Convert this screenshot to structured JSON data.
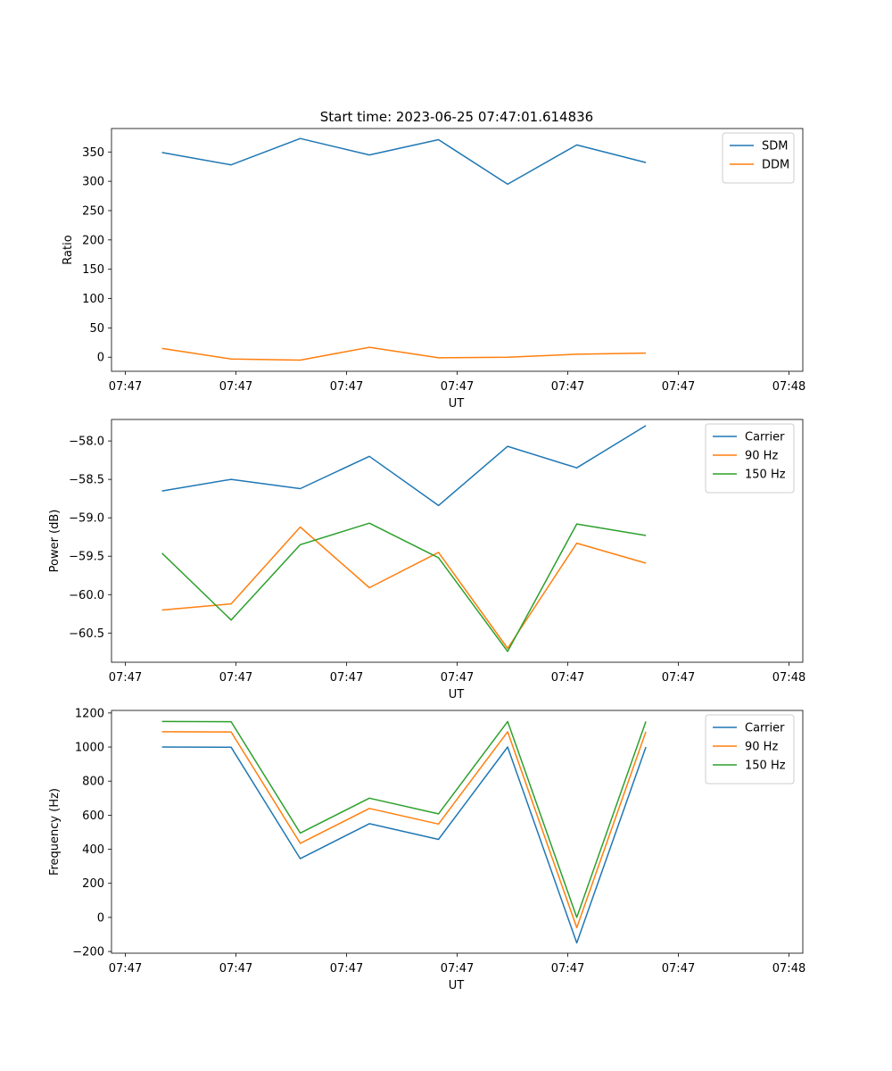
{
  "title": "Start time: 2023-06-25 07:47:01.614836",
  "colors": {
    "blue": "#1f77b4",
    "orange": "#ff7f0e",
    "green": "#2ca02c",
    "axes": "#000000",
    "legend_border": "#cccccc"
  },
  "chart_data": [
    {
      "type": "line",
      "xlabel": "UT",
      "ylabel": "Ratio",
      "xlim": [
        0,
        10
      ],
      "x_tick_labels": [
        "07:47",
        "07:47",
        "07:47",
        "07:47",
        "07:47",
        "07:47",
        "07:48"
      ],
      "ylim": [
        -24,
        390
      ],
      "y_ticks": [
        0,
        50,
        100,
        150,
        200,
        250,
        300,
        350
      ],
      "grid": false,
      "legend": "upper right",
      "x": [
        0.73,
        1.73,
        2.73,
        3.73,
        4.73,
        5.73,
        6.73,
        7.73
      ],
      "series": [
        {
          "name": "SDM",
          "color": "#1f77b4",
          "values": [
            349,
            328,
            373,
            345,
            371,
            295,
            362,
            332
          ]
        },
        {
          "name": "DDM",
          "color": "#ff7f0e",
          "values": [
            15,
            -3,
            -5,
            17,
            -1,
            0,
            5,
            7
          ]
        }
      ]
    },
    {
      "type": "line",
      "xlabel": "UT",
      "ylabel": "Power (dB)",
      "xlim": [
        0,
        10
      ],
      "x_tick_labels": [
        "07:47",
        "07:47",
        "07:47",
        "07:47",
        "07:47",
        "07:47",
        "07:48"
      ],
      "ylim": [
        -60.88,
        -57.72
      ],
      "y_ticks": [
        -60.5,
        -60.0,
        -59.5,
        -59.0,
        -58.5,
        -58.0
      ],
      "y_tick_labels": [
        "−60.5",
        "−60.0",
        "−59.5",
        "−59.0",
        "−58.5",
        "−58.0"
      ],
      "grid": false,
      "legend": "upper right",
      "x": [
        0.73,
        1.73,
        2.73,
        3.73,
        4.73,
        5.73,
        6.73,
        7.73
      ],
      "series": [
        {
          "name": "Carrier",
          "color": "#1f77b4",
          "values": [
            -58.65,
            -58.5,
            -58.62,
            -58.2,
            -58.84,
            -58.07,
            -58.35,
            -57.8
          ]
        },
        {
          "name": "90 Hz",
          "color": "#ff7f0e",
          "values": [
            -60.2,
            -60.12,
            -59.12,
            -59.91,
            -59.45,
            -60.7,
            -59.33,
            -59.59
          ]
        },
        {
          "name": "150 Hz",
          "color": "#2ca02c",
          "values": [
            -59.46,
            -60.33,
            -59.35,
            -59.07,
            -59.52,
            -60.74,
            -59.08,
            -59.23
          ]
        }
      ]
    },
    {
      "type": "line",
      "xlabel": "UT",
      "ylabel": "Frequency (Hz)",
      "xlim": [
        0,
        10
      ],
      "x_tick_labels": [
        "07:47",
        "07:47",
        "07:47",
        "07:47",
        "07:47",
        "07:47",
        "07:48"
      ],
      "ylim": [
        -210,
        1215
      ],
      "y_ticks": [
        -200,
        0,
        200,
        400,
        600,
        800,
        1000,
        1200
      ],
      "y_tick_labels": [
        "−200",
        "0",
        "200",
        "400",
        "600",
        "800",
        "1000",
        "1200"
      ],
      "grid": false,
      "legend": "upper right",
      "x": [
        0.73,
        1.73,
        2.73,
        3.73,
        4.73,
        5.73,
        6.73,
        7.73
      ],
      "series": [
        {
          "name": "Carrier",
          "color": "#1f77b4",
          "values": [
            1000,
            999,
            345,
            550,
            458,
            1000,
            -150,
            1000
          ]
        },
        {
          "name": "90 Hz",
          "color": "#ff7f0e",
          "values": [
            1090,
            1089,
            435,
            640,
            548,
            1090,
            -60,
            1090
          ]
        },
        {
          "name": "150 Hz",
          "color": "#2ca02c",
          "values": [
            1150,
            1149,
            495,
            700,
            608,
            1150,
            0,
            1150
          ]
        }
      ]
    }
  ]
}
